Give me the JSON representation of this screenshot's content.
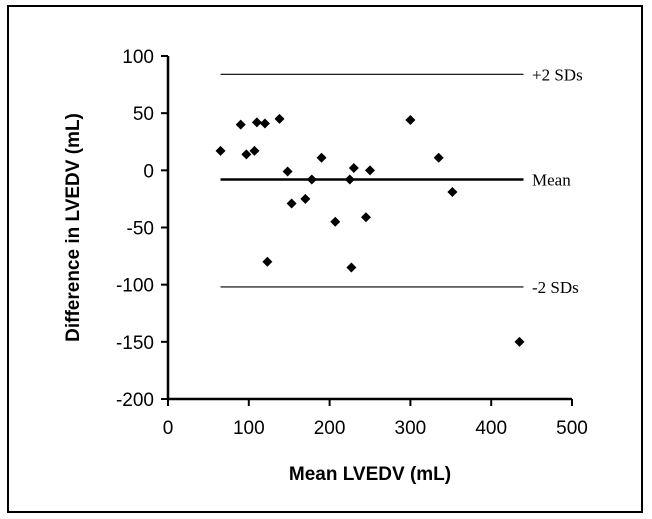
{
  "chart_data": {
    "type": "scatter",
    "xlabel": "Mean LVEDV (mL)",
    "ylabel": "Difference in LVEDV (mL)",
    "xlim": [
      0,
      500
    ],
    "ylim": [
      -200,
      100
    ],
    "x_ticks": [
      0,
      100,
      200,
      300,
      400,
      500
    ],
    "y_ticks": [
      100,
      50,
      0,
      -50,
      -100,
      -150,
      -200
    ],
    "grid": false,
    "legend": "none",
    "marker_color": "#000000",
    "points": [
      {
        "x": 65,
        "y": 17
      },
      {
        "x": 90,
        "y": 40
      },
      {
        "x": 97,
        "y": 14
      },
      {
        "x": 107,
        "y": 17
      },
      {
        "x": 110,
        "y": 42
      },
      {
        "x": 120,
        "y": 41
      },
      {
        "x": 123,
        "y": -80
      },
      {
        "x": 138,
        "y": 45
      },
      {
        "x": 148,
        "y": -1
      },
      {
        "x": 153,
        "y": -29
      },
      {
        "x": 170,
        "y": -25
      },
      {
        "x": 178,
        "y": -8
      },
      {
        "x": 190,
        "y": 11
      },
      {
        "x": 207,
        "y": -45
      },
      {
        "x": 225,
        "y": -8
      },
      {
        "x": 227,
        "y": -85
      },
      {
        "x": 230,
        "y": 2
      },
      {
        "x": 245,
        "y": -41
      },
      {
        "x": 250,
        "y": 0
      },
      {
        "x": 300,
        "y": 44
      },
      {
        "x": 335,
        "y": 11
      },
      {
        "x": 352,
        "y": -19
      },
      {
        "x": 435,
        "y": -150
      }
    ],
    "reference_lines": [
      {
        "label": "+2 SDs",
        "y": 84,
        "x_range": [
          65,
          440
        ],
        "style": "thin"
      },
      {
        "label": "Mean",
        "y": -8,
        "x_range": [
          65,
          440
        ],
        "style": "thick"
      },
      {
        "label": "-2 SDs",
        "y": -102,
        "x_range": [
          65,
          440
        ],
        "style": "thin"
      }
    ]
  }
}
